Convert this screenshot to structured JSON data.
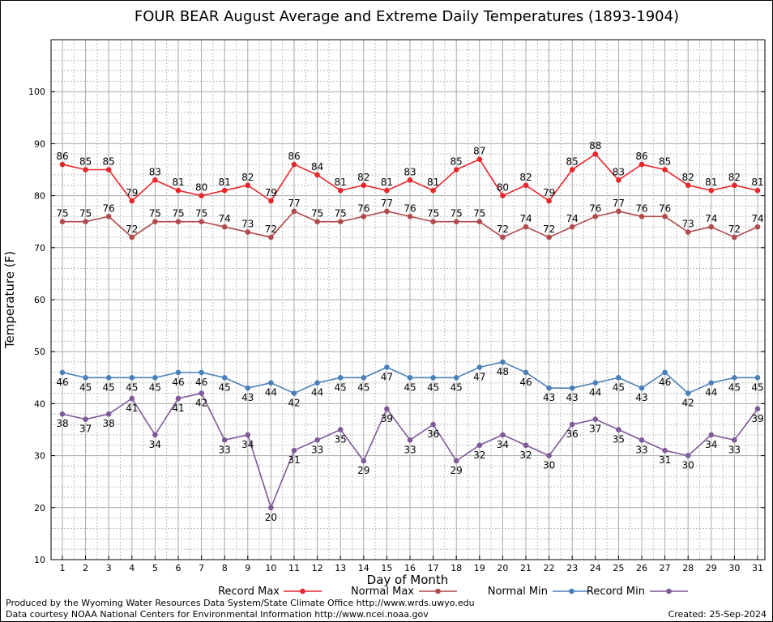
{
  "chart_data": {
    "type": "line",
    "title": "FOUR BEAR August Average and Extreme Daily Temperatures (1893-1904)",
    "xlabel": "Day of Month",
    "ylabel": "Temperature (F)",
    "ylim": [
      10,
      110
    ],
    "yticks": [
      10,
      20,
      30,
      40,
      50,
      60,
      70,
      80,
      90,
      100
    ],
    "x": [
      1,
      2,
      3,
      4,
      5,
      6,
      7,
      8,
      9,
      10,
      11,
      12,
      13,
      14,
      15,
      16,
      17,
      18,
      19,
      20,
      21,
      22,
      23,
      24,
      25,
      26,
      27,
      28,
      29,
      30,
      31
    ],
    "grid": true,
    "legend_position": "bottom",
    "series": [
      {
        "name": "Record Max",
        "color": "#e8262a",
        "values": [
          86,
          85,
          85,
          79,
          83,
          81,
          80,
          81,
          82,
          79,
          86,
          84,
          81,
          82,
          81,
          83,
          81,
          85,
          87,
          80,
          82,
          79,
          85,
          88,
          83,
          86,
          85,
          82,
          81,
          82,
          81
        ]
      },
      {
        "name": "Normal Max",
        "color": "#b04a4d",
        "values": [
          75,
          75,
          76,
          72,
          75,
          75,
          75,
          74,
          73,
          72,
          77,
          75,
          75,
          76,
          77,
          76,
          75,
          75,
          75,
          72,
          74,
          72,
          74,
          76,
          77,
          76,
          76,
          73,
          74,
          72,
          74
        ]
      },
      {
        "name": "Normal Min",
        "color": "#4a80b8",
        "values": [
          46,
          45,
          45,
          45,
          45,
          46,
          46,
          45,
          43,
          44,
          42,
          44,
          45,
          45,
          47,
          45,
          45,
          45,
          47,
          48,
          46,
          43,
          43,
          44,
          45,
          43,
          46,
          42,
          44,
          45,
          45
        ]
      },
      {
        "name": "Record Min",
        "color": "#7f5a98",
        "values": [
          38,
          37,
          38,
          41,
          34,
          41,
          42,
          33,
          34,
          20,
          31,
          33,
          35,
          29,
          39,
          33,
          36,
          29,
          32,
          34,
          32,
          30,
          36,
          37,
          35,
          33,
          31,
          30,
          34,
          33,
          39
        ]
      }
    ]
  },
  "footer": {
    "produced_by": "Produced by the Wyoming Water Resources Data System/State Climate Office http://www.wrds.uwyo.edu",
    "courtesy": "Data courtesy NOAA National Centers for Environmental Information http://www.ncei.noaa.gov",
    "created": "Created:  25-Sep-2024"
  }
}
